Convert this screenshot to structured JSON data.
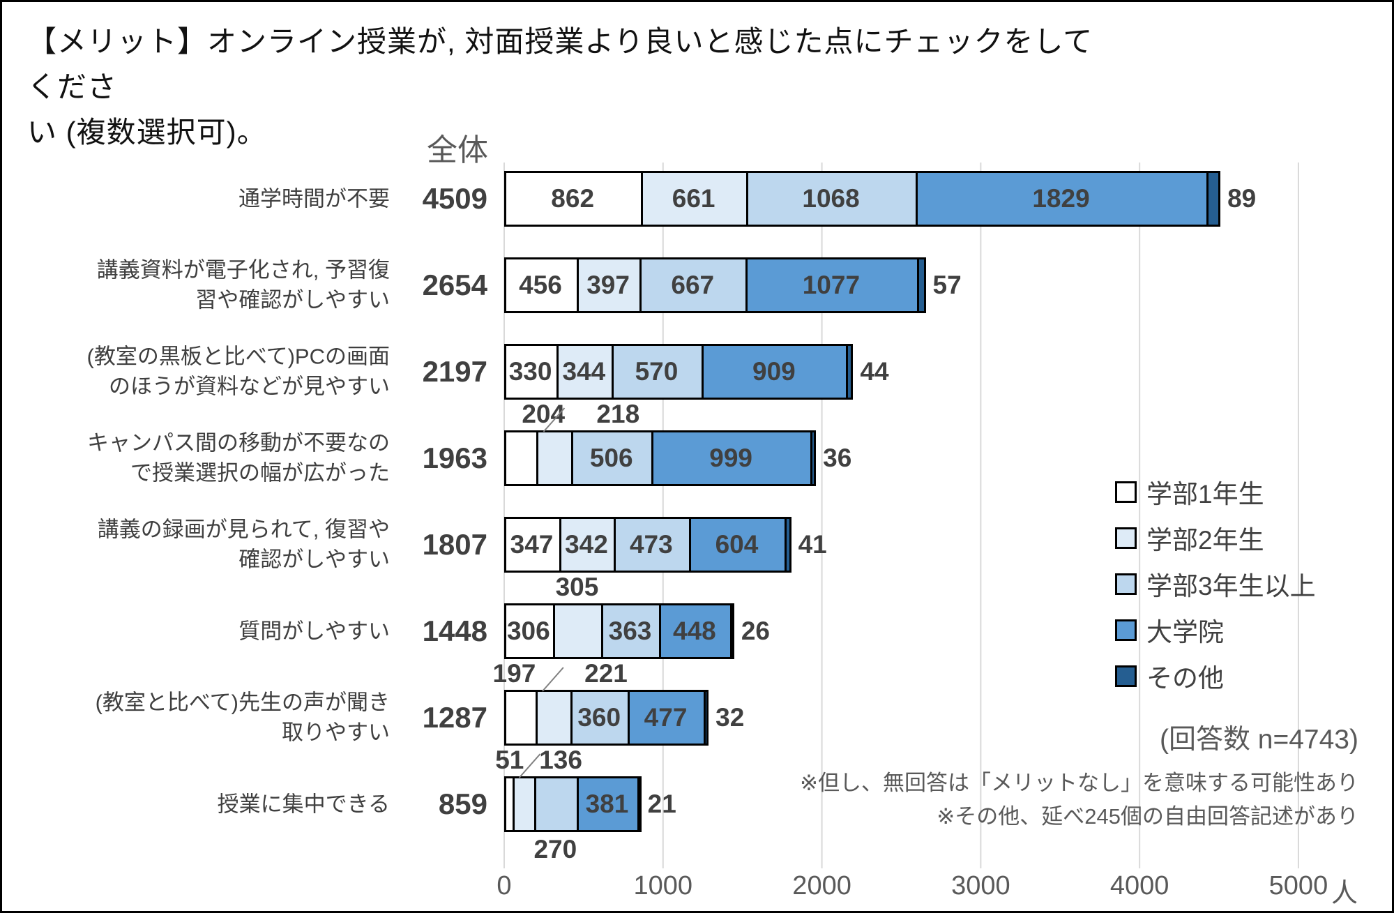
{
  "title": "【メリット】オンライン授業が, 対面授業より良いと感じた点にチェックをしてくださ\nい (複数選択可)。",
  "chart_data": {
    "type": "bar",
    "orientation": "horizontal",
    "stacked": true,
    "total_header": "全体",
    "unit": "人",
    "xlim": [
      0,
      5000
    ],
    "x_ticks": [
      0,
      1000,
      2000,
      3000,
      4000,
      5000
    ],
    "grid": true,
    "legend_position": "right",
    "legend": [
      {
        "label": "学部1年生",
        "color": "#FFFFFF"
      },
      {
        "label": "学部2年生",
        "color": "#DEEBF7"
      },
      {
        "label": "学部3年生以上",
        "color": "#BDD7EE"
      },
      {
        "label": "大学院",
        "color": "#5B9BD5"
      },
      {
        "label": "その他",
        "color": "#255E91"
      }
    ],
    "rows": [
      {
        "category": "通学時間が不要",
        "total": 4509,
        "values": [
          862,
          661,
          1068,
          1829,
          89
        ],
        "label_pos": [
          "inside",
          "inside",
          "inside",
          "inside",
          "right"
        ],
        "leader": false
      },
      {
        "category": "講義資料が電子化され, 予習復\n習や確認がしやすい",
        "total": 2654,
        "values": [
          456,
          397,
          667,
          1077,
          57
        ],
        "label_pos": [
          "inside",
          "inside",
          "inside",
          "inside",
          "right"
        ],
        "leader": false
      },
      {
        "category": "(教室の黒板と比べて)PCの画面\nのほうが資料などが見やすい",
        "total": 2197,
        "values": [
          330,
          344,
          570,
          909,
          44
        ],
        "label_pos": [
          "inside",
          "inside",
          "inside",
          "inside",
          "right"
        ],
        "leader": false
      },
      {
        "category": "キャンパス間の移動が不要なの\nで授業選択の幅が広がった",
        "total": 1963,
        "values": [
          204,
          218,
          506,
          999,
          36
        ],
        "label_pos": [
          "above",
          "above",
          "inside",
          "inside",
          "right"
        ],
        "leader": true
      },
      {
        "category": "講義の録画が見られて, 復習や\n確認がしやすい",
        "total": 1807,
        "values": [
          347,
          342,
          473,
          604,
          41
        ],
        "label_pos": [
          "inside",
          "inside",
          "inside",
          "inside",
          "right"
        ],
        "leader": false
      },
      {
        "category": "質問がしやすい",
        "total": 1448,
        "values": [
          306,
          305,
          363,
          448,
          26
        ],
        "label_pos": [
          "inside",
          "above",
          "inside",
          "inside",
          "right"
        ],
        "leader": false
      },
      {
        "category": "(教室と比べて)先生の声が聞き\n取りやすい",
        "total": 1287,
        "values": [
          197,
          221,
          360,
          477,
          32
        ],
        "label_pos": [
          "above",
          "above",
          "inside",
          "inside",
          "right"
        ],
        "leader": true
      },
      {
        "category": "授業に集中できる",
        "total": 859,
        "values": [
          51,
          136,
          270,
          381,
          21
        ],
        "label_pos": [
          "above",
          "above",
          "below",
          "inside",
          "right"
        ],
        "leader": true
      }
    ],
    "annotations": {
      "n_label": "(回答数 n=4743)",
      "note1": "※但し、無回答は「メリットなし」を意味する可能性あり",
      "note2": "※その他、延べ245個の自由回答記述があり"
    }
  }
}
